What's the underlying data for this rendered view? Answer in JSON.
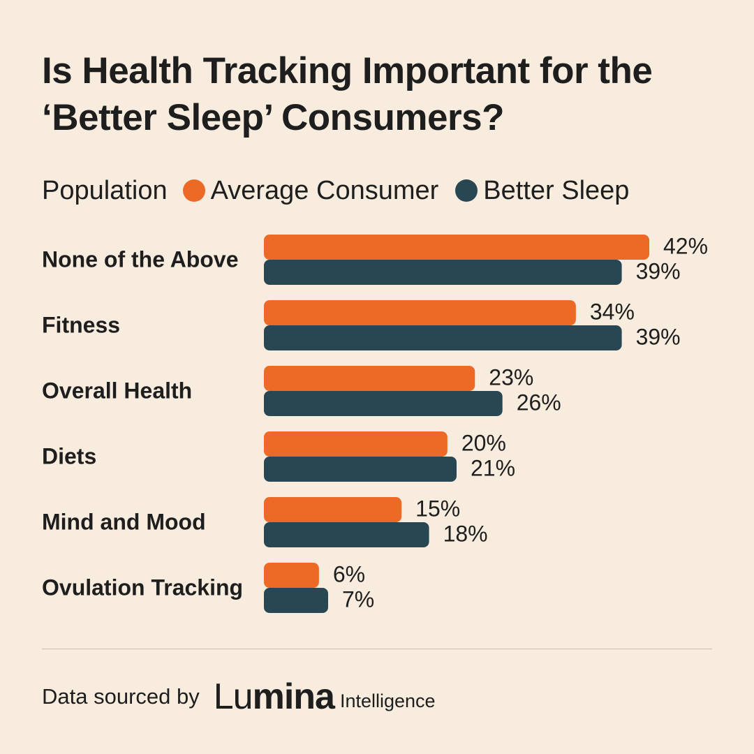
{
  "title_line1": "Is Health Tracking Important for the",
  "title_line2": "‘Better Sleep’ Consumers?",
  "legend": {
    "title": "Population",
    "items": [
      {
        "label": "Average Consumer",
        "color": "#ec6a25"
      },
      {
        "label": "Better Sleep",
        "color": "#284753"
      }
    ]
  },
  "chart_data": {
    "type": "bar",
    "orientation": "horizontal",
    "title": "Is Health Tracking Important for the ‘Better Sleep’ Consumers?",
    "legend_title": "Population",
    "categories": [
      "None of the Above",
      "Fitness",
      "Overall Health",
      "Diets",
      "Mind and Mood",
      "Ovulation Tracking"
    ],
    "series": [
      {
        "name": "Average Consumer",
        "color": "#ec6a25",
        "values": [
          42,
          34,
          23,
          20,
          15,
          6
        ],
        "labels": [
          "42%",
          "34%",
          "23%",
          "20%",
          "15%",
          "6%"
        ]
      },
      {
        "name": "Better Sleep",
        "color": "#284753",
        "values": [
          39,
          39,
          26,
          21,
          18,
          7
        ],
        "labels": [
          "39%",
          "39%",
          "26%",
          "21%",
          "18%",
          "7%"
        ]
      }
    ],
    "unit": "%",
    "grid": false,
    "legend_position": "top-left"
  },
  "footer": {
    "source_label": "Data sourced by",
    "logo_text": "Lumina",
    "logo_sub": "Intelligence"
  }
}
